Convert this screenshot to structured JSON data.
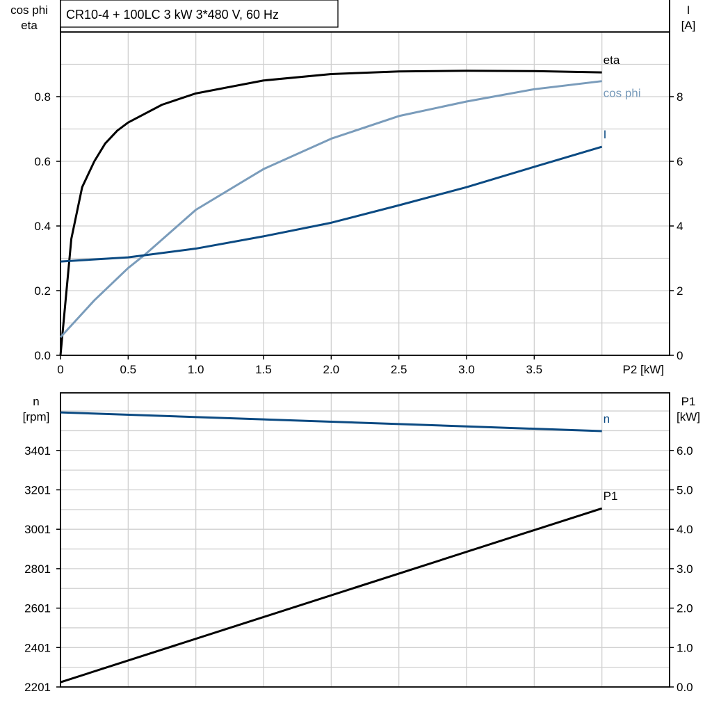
{
  "title": "CR10-4 + 100LC   3 kW   3*480 V, 60 Hz",
  "colors": {
    "eta": "#000000",
    "cos_phi": "#7a9cbb",
    "I": "#0b4a82",
    "n": "#0b4a82",
    "P1": "#000000",
    "grid": "#d0d0d0"
  },
  "chart_data": [
    {
      "type": "line",
      "xlabel": "P2 [kW]",
      "ylabel_left": [
        "cos phi",
        "eta"
      ],
      "ylabel_right": [
        "I",
        "[A]"
      ],
      "xlim": [
        0,
        4.5
      ],
      "ylim_left": [
        0,
        1.0
      ],
      "ylim_right": [
        0,
        10
      ],
      "xticks": [
        "0",
        "0.5",
        "1.0",
        "1.5",
        "2.0",
        "2.5",
        "3.0",
        "3.5"
      ],
      "yticks_left": [
        "0.0",
        "0.2",
        "0.4",
        "0.6",
        "0.8"
      ],
      "yticks_right": [
        "0",
        "2",
        "4",
        "6",
        "8"
      ],
      "grid": true,
      "series": [
        {
          "name": "eta",
          "axis": "left",
          "x": [
            0,
            0.08,
            0.16,
            0.25,
            0.33,
            0.42,
            0.5,
            0.75,
            1.0,
            1.5,
            2.0,
            2.5,
            3.0,
            3.5,
            4.0
          ],
          "y": [
            0,
            0.36,
            0.52,
            0.6,
            0.655,
            0.695,
            0.72,
            0.775,
            0.81,
            0.85,
            0.87,
            0.878,
            0.88,
            0.879,
            0.875
          ]
        },
        {
          "name": "cos phi",
          "axis": "left",
          "x": [
            0,
            0.25,
            0.5,
            0.62,
            1.0,
            1.5,
            2.0,
            2.5,
            3.0,
            3.5,
            4.0
          ],
          "y": [
            0.056,
            0.17,
            0.27,
            0.31,
            0.45,
            0.576,
            0.67,
            0.74,
            0.785,
            0.823,
            0.848
          ]
        },
        {
          "name": "I",
          "axis": "right",
          "x": [
            0,
            0.5,
            1.0,
            1.5,
            2.0,
            2.5,
            3.0,
            3.5,
            4.0
          ],
          "y": [
            2.9,
            3.03,
            3.3,
            3.68,
            4.1,
            4.64,
            5.2,
            5.83,
            6.45
          ]
        }
      ]
    },
    {
      "type": "line",
      "ylabel_left": [
        "n",
        "[rpm]"
      ],
      "ylabel_right": [
        "P1",
        "[kW]"
      ],
      "xlim": [
        0,
        4.5
      ],
      "ylim_left": [
        2201,
        3693
      ],
      "ylim_right": [
        0,
        7.46
      ],
      "yticks_left": [
        "2201",
        "2401",
        "2601",
        "2801",
        "3001",
        "3201",
        "3401"
      ],
      "yticks_right": [
        "0.0",
        "1.0",
        "2.0",
        "3.0",
        "4.0",
        "5.0",
        "6.0"
      ],
      "grid": true,
      "series": [
        {
          "name": "n",
          "axis": "left",
          "x": [
            0,
            4.0
          ],
          "y": [
            3594,
            3499
          ]
        },
        {
          "name": "P1",
          "axis": "right",
          "x": [
            0,
            4.0
          ],
          "y": [
            0.12,
            4.53
          ]
        }
      ]
    }
  ]
}
